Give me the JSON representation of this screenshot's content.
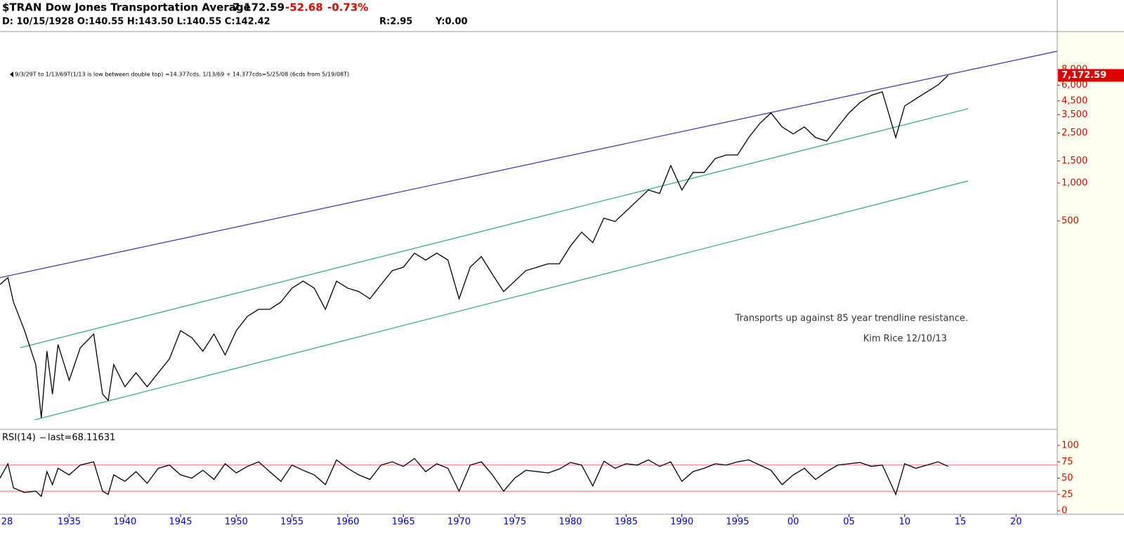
{
  "header": {
    "title": "$TRAN Dow Jones Transportation Average",
    "price": "7,172.59",
    "change": "-52.68",
    "change_percent": "-0.73%",
    "bar_info": "D: 10/15/1928 O:140.55 H:143.50 L:140.55 C:142.42",
    "r_info": "R:2.95",
    "y_info": "Y:0.00"
  },
  "chart_data": [
    {
      "type": "line",
      "log_scale": true,
      "x": [
        1928.79,
        1929.5,
        1930,
        1931,
        1932,
        1932.5,
        1933,
        1933.5,
        1934,
        1935,
        1936,
        1937.2,
        1938,
        1938.5,
        1939,
        1940,
        1941,
        1942,
        1943,
        1944,
        1945,
        1946,
        1947,
        1948,
        1949,
        1950,
        1951,
        1952,
        1953,
        1954,
        1955,
        1956,
        1957,
        1958,
        1959,
        1960,
        1961,
        1962,
        1963,
        1964,
        1965,
        1966,
        1967,
        1968,
        1969,
        1970,
        1971,
        1972,
        1973,
        1974,
        1975,
        1976,
        1977,
        1978,
        1979,
        1980,
        1981,
        1982,
        1983,
        1984,
        1985,
        1986,
        1987,
        1988,
        1989,
        1990,
        1991,
        1992,
        1993,
        1994,
        1995,
        1996,
        1997,
        1998,
        1999,
        2000,
        2001,
        2002,
        2003,
        2004,
        2005,
        2006,
        2007,
        2008,
        2009.2,
        2010,
        2011,
        2012,
        2013,
        2013.9
      ],
      "xlim": [
        1928.79,
        2023.7
      ],
      "ylim": [
        11,
        16000
      ],
      "yticks": [
        500,
        {
          "value": 1000,
          "label": "1,000"
        },
        {
          "value": 1500,
          "label": "1,500"
        },
        {
          "value": 2500,
          "label": "2,500"
        },
        {
          "value": 3500,
          "label": "3,500"
        },
        {
          "value": 4500,
          "label": "4,500"
        },
        {
          "value": 6000,
          "label": "6,000"
        },
        {
          "value": 8000,
          "label": "8,000"
        }
      ],
      "series": [
        {
          "color": "#000000",
          "values": [
            156,
            177,
            113,
            67,
            36,
            13.6,
            46,
            21,
            52,
            27,
            49,
            63,
            21,
            18.7,
            36,
            24,
            31,
            24,
            31,
            40,
            67,
            59,
            46,
            63,
            43,
            67,
            87,
            99,
            99,
            113,
            146,
            166,
            146,
            99,
            166,
            146,
            137,
            120,
            156,
            201,
            214,
            277,
            244,
            277,
            244,
            120,
            214,
            260,
            188,
            137,
            166,
            201,
            214,
            228,
            228,
            315,
            407,
            336,
            526,
            494,
            598,
            726,
            880,
            825,
            1377,
            880,
            1213,
            1213,
            1567,
            1671,
            1671,
            2301,
            2979,
            3606,
            2793,
            2455,
            2793,
            2301,
            2158,
            2793,
            3606,
            4375,
            4977,
            5309,
            2301,
            4102,
            4667,
            5309,
            6026,
            7172.59
          ]
        }
      ],
      "last_label": "7,172.59",
      "trendlines": [
        {
          "color": "#3333aa",
          "x": [
            1928.79,
            2023.7
          ],
          "values": [
            177,
            11170
          ]
        },
        {
          "color": "#2aa58a",
          "x": [
            1930.6,
            2015.7
          ],
          "values": [
            49,
            3899
          ]
        },
        {
          "color": "#2aa58a",
          "x": [
            1931.9,
            2015.7
          ],
          "values": [
            13.1,
            1039
          ]
        }
      ],
      "annotations": [
        "9/3/29T to 1/13/69T(1/13 is low between double top) =14.377cds. 1/13/69 + 14.377cds=5/25/08 (6cds from 5/19/08T)",
        "Transports up against 85 year trendline resistance.",
        "Kim Rice 12/10/13"
      ]
    },
    {
      "type": "line",
      "title": "RSI(14)",
      "last_label": "last=68.11631",
      "x": [
        1928.79,
        1929.5,
        1930,
        1931,
        1932,
        1932.5,
        1933,
        1933.5,
        1934,
        1935,
        1936,
        1937.2,
        1938,
        1938.5,
        1939,
        1940,
        1941,
        1942,
        1943,
        1944,
        1945,
        1946,
        1947,
        1948,
        1949,
        1950,
        1951,
        1952,
        1953,
        1954,
        1955,
        1956,
        1957,
        1958,
        1959,
        1960,
        1961,
        1962,
        1963,
        1964,
        1965,
        1966,
        1967,
        1968,
        1969,
        1970,
        1971,
        1972,
        1973,
        1974,
        1975,
        1976,
        1977,
        1978,
        1979,
        1980,
        1981,
        1982,
        1983,
        1984,
        1985,
        1986,
        1987,
        1988,
        1989,
        1990,
        1991,
        1992,
        1993,
        1994,
        1995,
        1996,
        1997,
        1998,
        1999,
        2000,
        2001,
        2002,
        2003,
        2004,
        2005,
        2006,
        2007,
        2008,
        2009.2,
        2010,
        2011,
        2012,
        2013,
        2013.9
      ],
      "xlim": [
        1928.79,
        2023.7
      ],
      "xticks": [
        {
          "value": 1928,
          "label": "28"
        },
        1935,
        1940,
        1945,
        1950,
        1955,
        1960,
        1965,
        1970,
        1975,
        1980,
        1985,
        1990,
        1995,
        {
          "value": 2000,
          "label": "00"
        },
        {
          "value": 2005,
          "label": "05"
        },
        {
          "value": 2010,
          "label": "10"
        },
        {
          "value": 2015,
          "label": "15"
        },
        {
          "value": 2020,
          "label": "20"
        }
      ],
      "ylim": [
        0,
        100
      ],
      "yticks": [
        0,
        25,
        50,
        75,
        100
      ],
      "reference_lines": [
        30,
        70
      ],
      "reference_color": "#ff6666",
      "series": [
        {
          "color": "#000000",
          "values": [
            50,
            72,
            35,
            28,
            30,
            22,
            60,
            40,
            65,
            55,
            70,
            75,
            30,
            25,
            55,
            45,
            60,
            42,
            65,
            70,
            55,
            50,
            62,
            48,
            72,
            58,
            68,
            75,
            60,
            45,
            70,
            62,
            55,
            40,
            78,
            65,
            55,
            48,
            70,
            75,
            68,
            80,
            60,
            72,
            65,
            30,
            70,
            75,
            55,
            30,
            50,
            62,
            60,
            58,
            64,
            74,
            70,
            38,
            76,
            65,
            72,
            70,
            78,
            68,
            75,
            45,
            60,
            65,
            72,
            70,
            75,
            78,
            70,
            62,
            40,
            55,
            65,
            48,
            60,
            70,
            72,
            74,
            68,
            70,
            25,
            72,
            65,
            70,
            75,
            68.11631
          ]
        }
      ]
    }
  ]
}
